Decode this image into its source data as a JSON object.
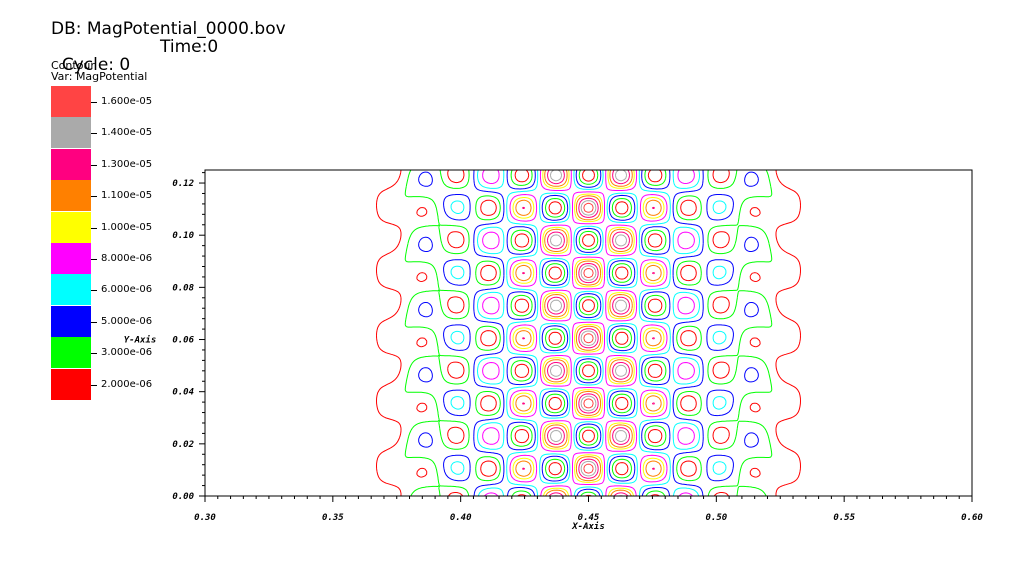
{
  "header": {
    "db_label": "DB: MagPotential_0000.bov",
    "cycle_label": "Cycle: 0",
    "time_label": "Time:0"
  },
  "legend": {
    "title": "Contour",
    "variable": "Var: MagPotential",
    "entries": [
      {
        "label": "1.600e-05",
        "color": "#ff4444"
      },
      {
        "label": "1.400e-05",
        "color": "#aaaaaa"
      },
      {
        "label": "1.300e-05",
        "color": "#ff0080"
      },
      {
        "label": "1.100e-05",
        "color": "#ff8000"
      },
      {
        "label": "1.000e-05",
        "color": "#ffff00"
      },
      {
        "label": "8.000e-06",
        "color": "#ff00ff"
      },
      {
        "label": "6.000e-06",
        "color": "#00ffff"
      },
      {
        "label": "5.000e-06",
        "color": "#0000ff"
      },
      {
        "label": "3.000e-06",
        "color": "#00ff00"
      },
      {
        "label": "2.000e-06",
        "color": "#ff0000"
      }
    ]
  },
  "chart_data": {
    "type": "contour",
    "xlabel": "X-Axis",
    "ylabel": "Y-Axis",
    "xlim": [
      0.3,
      0.6
    ],
    "ylim": [
      0.0,
      0.125
    ],
    "xticks": [
      "0.30",
      "0.35",
      "0.40",
      "0.45",
      "0.50",
      "0.55",
      "0.60"
    ],
    "yticks": [
      "0.00",
      "0.02",
      "0.04",
      "0.06",
      "0.08",
      "0.10",
      "0.12"
    ],
    "levels": [
      2e-06,
      3e-06,
      5e-06,
      6e-06,
      8e-06,
      1e-05,
      1.1e-05,
      1.3e-05,
      1.4e-05,
      1.6e-05
    ],
    "grid": false
  }
}
